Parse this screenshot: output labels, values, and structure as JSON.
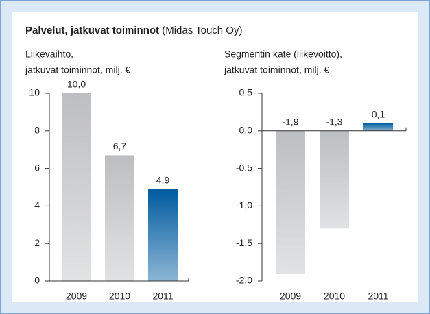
{
  "title": "Palvelut, jatkuvat toiminnot",
  "title_note": "(Midas Touch Oy)",
  "chart_data": [
    {
      "type": "bar",
      "ylabel": [
        "Liikevaihto,",
        "jatkuvat toiminnot, milj. €"
      ],
      "categories": [
        "2009",
        "2010",
        "2011"
      ],
      "values": [
        10.0,
        6.7,
        4.9
      ],
      "value_labels": [
        "10,0",
        "6,7",
        "4,9"
      ],
      "colors": [
        "#bdbec0",
        "#bdbec0",
        "#005b9f"
      ],
      "ylim": [
        0,
        10
      ],
      "yticks": [
        0,
        2,
        4,
        6,
        8,
        10
      ]
    },
    {
      "type": "bar",
      "ylabel": [
        "Segmentin kate (liikevoitto),",
        "jatkuvat toiminnot, milj. €"
      ],
      "categories": [
        "2009",
        "2010",
        "2011"
      ],
      "values": [
        -1.9,
        -1.3,
        0.1
      ],
      "value_labels": [
        "-1,9",
        "-1,3",
        "0,1"
      ],
      "colors": [
        "#bdbec0",
        "#bdbec0",
        "#005b9f"
      ],
      "ylim": [
        -2.0,
        0.5
      ],
      "yticks": [
        {
          "value": -2.0,
          "label": "-2,0"
        },
        {
          "value": -1.5,
          "label": "-1,5"
        },
        {
          "value": -1.0,
          "label": "-1,0"
        },
        {
          "value": -0.5,
          "label": "-0,5"
        },
        {
          "value": 0.0,
          "label": "0,0"
        },
        {
          "value": 0.5,
          "label": "0,5"
        }
      ]
    }
  ]
}
